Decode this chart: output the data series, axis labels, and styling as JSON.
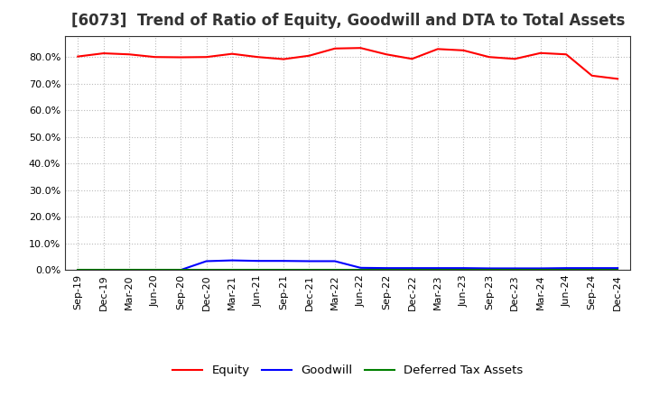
{
  "title": "[6073]  Trend of Ratio of Equity, Goodwill and DTA to Total Assets",
  "x_labels": [
    "Sep-19",
    "Dec-19",
    "Mar-20",
    "Jun-20",
    "Sep-20",
    "Dec-20",
    "Mar-21",
    "Jun-21",
    "Sep-21",
    "Dec-21",
    "Mar-22",
    "Jun-22",
    "Sep-22",
    "Dec-22",
    "Mar-23",
    "Jun-23",
    "Sep-23",
    "Dec-23",
    "Mar-24",
    "Jun-24",
    "Sep-24",
    "Dec-24"
  ],
  "equity": [
    0.802,
    0.814,
    0.81,
    0.8,
    0.799,
    0.8,
    0.812,
    0.8,
    0.792,
    0.805,
    0.832,
    0.834,
    0.81,
    0.793,
    0.83,
    0.825,
    0.8,
    0.793,
    0.815,
    0.81,
    0.73,
    0.718
  ],
  "goodwill": [
    0.0,
    0.0,
    0.0,
    0.0,
    0.0,
    0.033,
    0.036,
    0.034,
    0.034,
    0.033,
    0.033,
    0.008,
    0.007,
    0.007,
    0.007,
    0.007,
    0.006,
    0.006,
    0.006,
    0.007,
    0.007,
    0.007
  ],
  "dta": [
    0.0,
    0.0,
    0.0,
    0.0,
    0.0,
    0.0,
    0.0,
    0.0,
    0.0,
    0.0,
    0.0,
    0.0,
    0.0,
    0.0,
    0.0,
    0.0,
    0.0,
    0.0,
    0.0,
    0.0,
    0.0,
    0.0
  ],
  "equity_color": "#FF0000",
  "goodwill_color": "#0000FF",
  "dta_color": "#008000",
  "background_color": "#FFFFFF",
  "plot_bg_color": "#FFFFFF",
  "grid_color": "#BBBBBB",
  "ylim": [
    0.0,
    0.88
  ],
  "yticks": [
    0.0,
    0.1,
    0.2,
    0.3,
    0.4,
    0.5,
    0.6,
    0.7,
    0.8
  ],
  "legend_labels": [
    "Equity",
    "Goodwill",
    "Deferred Tax Assets"
  ],
  "title_fontsize": 12,
  "tick_fontsize": 8,
  "legend_fontsize": 9.5
}
